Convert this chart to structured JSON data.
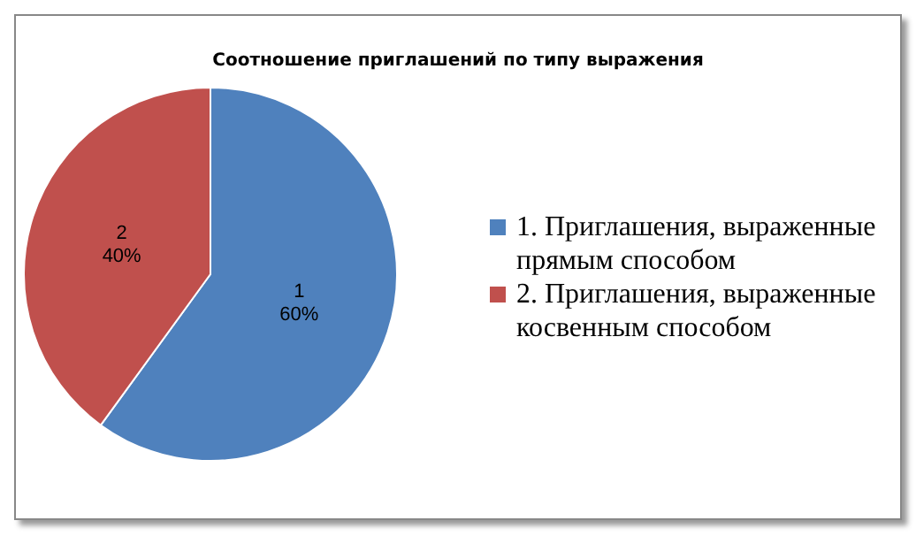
{
  "chart_data": {
    "type": "pie",
    "title": "Соотношение приглашений по типу выражения",
    "categories": [
      "1. Приглашения, выраженные прямым способом",
      "2. Приглашения, выраженные косвенным способом"
    ],
    "values": [
      60,
      40
    ],
    "colors": [
      "#4f81bd",
      "#c0504d"
    ],
    "value_labels": [
      "1\n60%",
      "2\n40%"
    ],
    "legend": "right"
  }
}
